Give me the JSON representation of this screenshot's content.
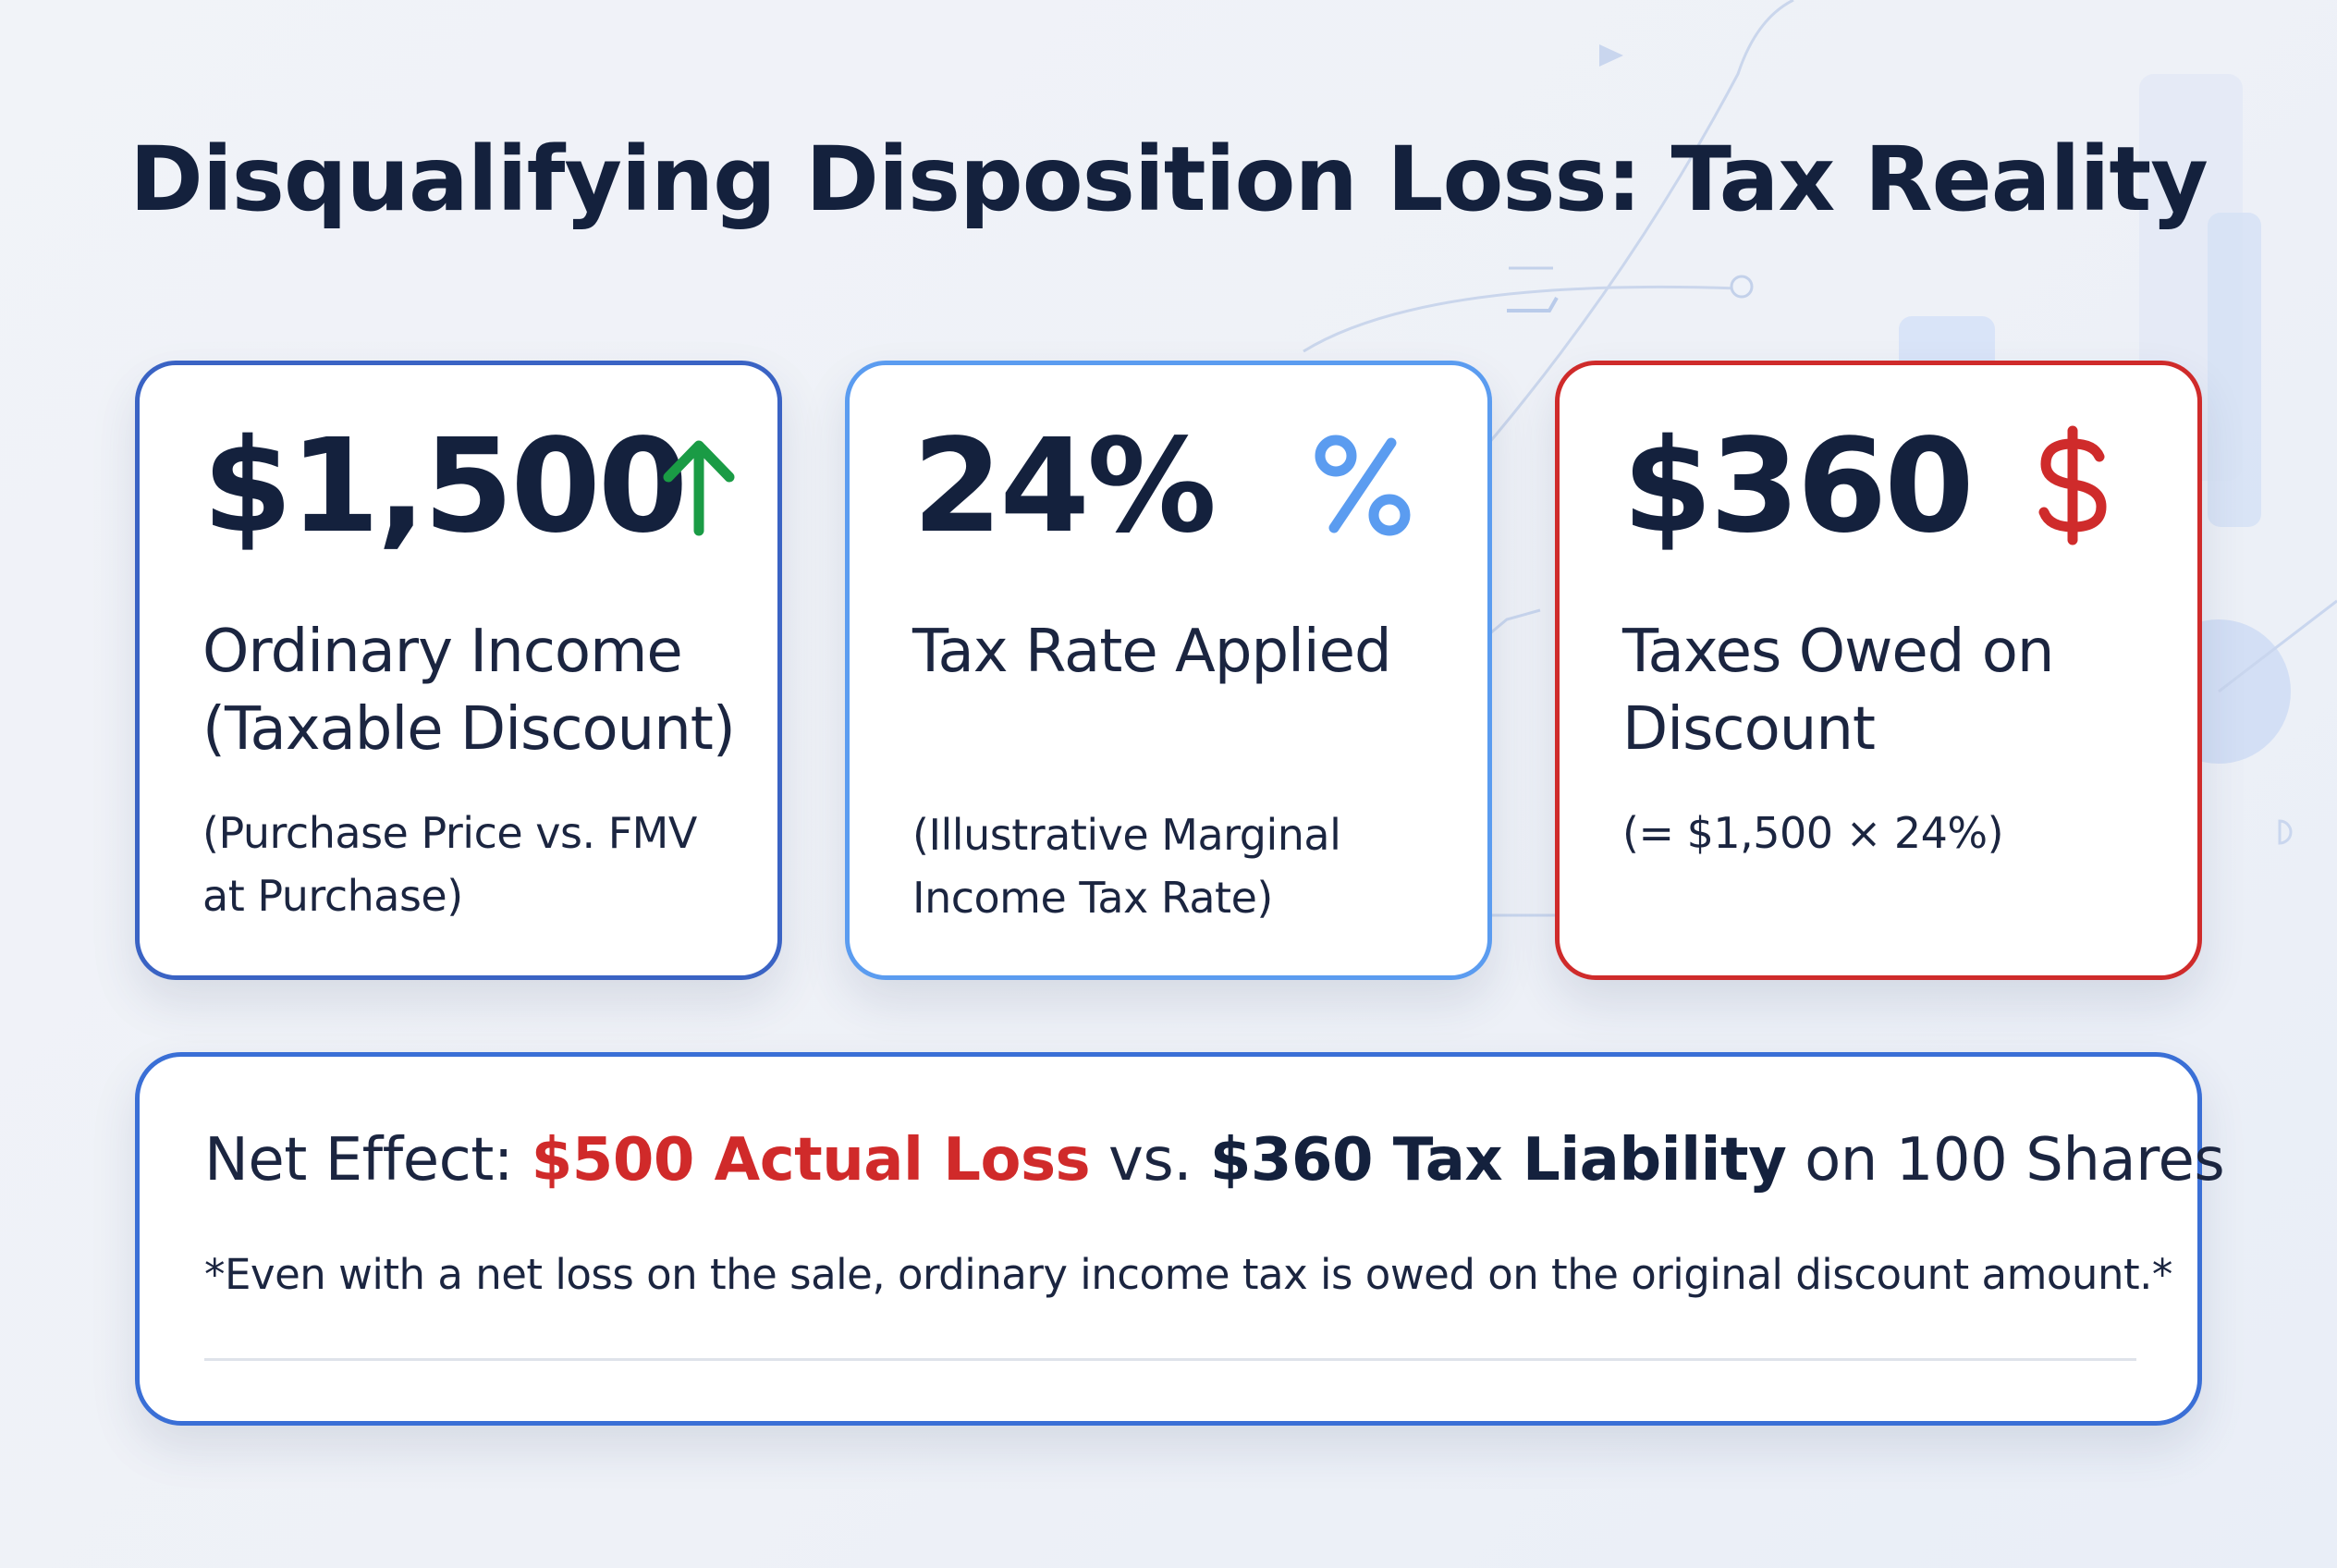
{
  "title": "Disqualifying Disposition Loss: Tax Reality",
  "cards": [
    {
      "value": "$1,500",
      "icon": "arrow-up-icon",
      "icon_color": "#1a9b45",
      "label_line1": "Ordinary Income",
      "label_line2": "(Taxable Discount)",
      "note_line1": "(Purchase Price vs. FMV",
      "note_line2": "at Purchase)",
      "border_color": "#3a63c4"
    },
    {
      "value": "24%",
      "icon": "percent-icon",
      "icon_color": "#5b9cf0",
      "label_line1": "Tax Rate Applied",
      "label_line2": "",
      "note_line1": "(Illustrative Marginal",
      "note_line2": "Income Tax Rate)",
      "border_color": "#5b9cf0"
    },
    {
      "value": "$360",
      "icon": "dollar-icon",
      "icon_color": "#cf2b2b",
      "label_line1": "Taxes Owed on",
      "label_line2": "Discount",
      "note_line1": "(= $1,500 × 24%)",
      "note_line2": "",
      "border_color": "#cf2b2b"
    }
  ],
  "summary": {
    "prefix": "Net Effect: ",
    "loss": "$500 Actual Loss",
    "middle": " vs. ",
    "liability": "$360 Tax Liability",
    "suffix": " on 100 Shares",
    "footnote": "*Even with a net loss on the sale, ordinary income tax is owed on the original discount amount.*",
    "loss_color": "#d02a2a"
  }
}
